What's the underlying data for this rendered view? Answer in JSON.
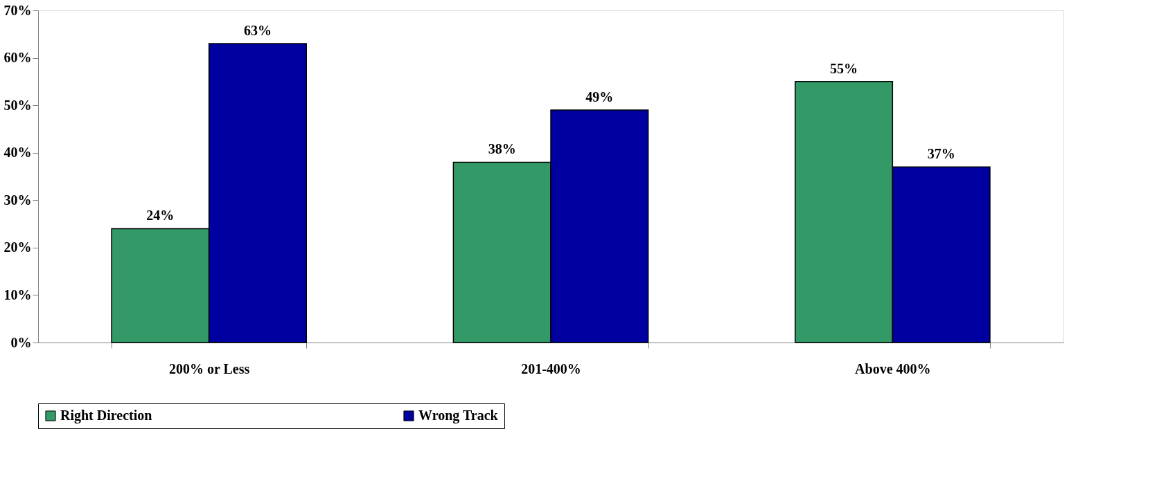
{
  "chart_data": {
    "type": "bar",
    "categories": [
      "200% or Less",
      "201-400%",
      "Above 400%"
    ],
    "series": [
      {
        "name": "Right Direction",
        "color": "#339966",
        "values": [
          24,
          38,
          55
        ],
        "value_labels": [
          "24%",
          "38%",
          "55%"
        ]
      },
      {
        "name": "Wrong Track",
        "color": "#0000a0",
        "values": [
          63,
          49,
          37
        ],
        "value_labels": [
          "63%",
          "49%",
          "37%"
        ]
      }
    ],
    "ylim": [
      0,
      70
    ],
    "yticks": [
      {
        "value": 0,
        "label": "0%"
      },
      {
        "value": 10,
        "label": "10%"
      },
      {
        "value": 20,
        "label": "20%"
      },
      {
        "value": 30,
        "label": "30%"
      },
      {
        "value": 40,
        "label": "40%"
      },
      {
        "value": 50,
        "label": "50%"
      },
      {
        "value": 60,
        "label": "60%"
      },
      {
        "value": 70,
        "label": "70%"
      }
    ],
    "grid": false,
    "legend": "bottom"
  }
}
